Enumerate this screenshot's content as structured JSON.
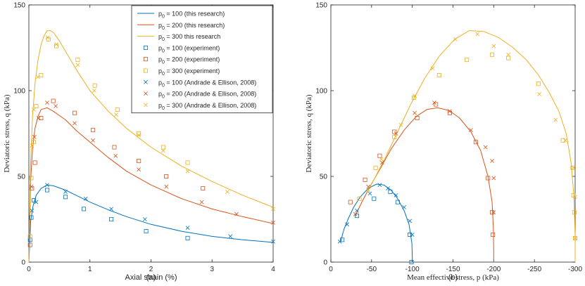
{
  "chart_data": [
    {
      "type": "line",
      "panel_label": "(a)",
      "xlabel": "Axial strain (%)",
      "ylabel": "Deviatoric stress, q (kPa)",
      "xlim": [
        0,
        4
      ],
      "ylim": [
        0,
        150
      ],
      "xticks": [
        0,
        1,
        2,
        3,
        4
      ],
      "yticks": [
        0,
        50,
        100,
        150
      ],
      "xtick_labels": [
        "0",
        "1",
        "2",
        "3",
        "4"
      ],
      "ytick_labels": [
        "0",
        "50",
        "100",
        "150"
      ],
      "grid": false,
      "legend_position": "top-right",
      "series": [
        {
          "name": "p0 = 100 (this research)",
          "kind": "line",
          "color": "#0072BD",
          "x": [
            0,
            0.03,
            0.07,
            0.12,
            0.2,
            0.3,
            0.4,
            0.6,
            0.8,
            1.0,
            1.3,
            1.6,
            2.0,
            2.5,
            3.0,
            3.5,
            4.0
          ],
          "y": [
            0,
            24,
            33,
            39,
            43,
            45,
            44.5,
            42,
            38.5,
            35,
            30.5,
            26.5,
            22,
            18,
            15,
            13,
            11.5
          ]
        },
        {
          "name": "p0 = 200 (this research)",
          "kind": "line",
          "color": "#D95319",
          "x": [
            0,
            0.03,
            0.06,
            0.1,
            0.15,
            0.2,
            0.3,
            0.4,
            0.6,
            0.8,
            1.0,
            1.3,
            1.6,
            2.0,
            2.5,
            3.0,
            3.5,
            4.0
          ],
          "y": [
            0,
            48,
            66,
            78,
            85,
            89,
            90,
            88,
            83,
            76,
            70,
            61,
            53,
            45,
            37,
            31,
            26.5,
            22.5
          ]
        },
        {
          "name": "p0 = 300 this research",
          "kind": "line",
          "color": "#EDB120",
          "x": [
            0,
            0.03,
            0.06,
            0.1,
            0.15,
            0.2,
            0.25,
            0.3,
            0.35,
            0.4,
            0.5,
            0.6,
            0.8,
            1.0,
            1.3,
            1.6,
            2.0,
            2.5,
            3.0,
            3.5,
            4.0
          ],
          "y": [
            0,
            60,
            85,
            104,
            118,
            127,
            132,
            135,
            135,
            134,
            129,
            123,
            111,
            100,
            88,
            78,
            67,
            56,
            47,
            39,
            32
          ]
        },
        {
          "name": "p0 = 100 (experiment)",
          "kind": "square",
          "color": "#0072BD",
          "x": [
            0.02,
            0.04,
            0.08,
            0.3,
            0.6,
            0.9,
            1.35,
            1.92,
            2.6
          ],
          "y": [
            13,
            26,
            36,
            42,
            38,
            31,
            25,
            18,
            14
          ]
        },
        {
          "name": "p0 = 200 (experiment)",
          "kind": "square",
          "color": "#D95319",
          "x": [
            0.02,
            0.05,
            0.1,
            0.2,
            0.4,
            0.75,
            1.05,
            1.4,
            1.8,
            2.25,
            2.85
          ],
          "y": [
            10,
            43,
            58,
            84,
            94,
            87,
            77,
            67,
            59,
            50,
            43
          ]
        },
        {
          "name": "p0 = 300 (experiment)",
          "kind": "square",
          "color": "#EDB120",
          "x": [
            0.02,
            0.04,
            0.08,
            0.12,
            0.2,
            0.32,
            0.45,
            0.8,
            1.08,
            1.45,
            1.8,
            2.2,
            2.6
          ],
          "y": [
            15,
            49,
            70,
            91,
            109,
            130,
            126,
            118,
            103,
            89,
            75,
            67,
            58
          ]
        },
        {
          "name": "p0 = 100 (Andrade & Ellison, 2008)",
          "kind": "cross",
          "color": "#0072BD",
          "x": [
            0.05,
            0.12,
            0.3,
            0.6,
            0.93,
            1.35,
            1.9,
            2.6,
            3.3,
            4.0
          ],
          "y": [
            30,
            35,
            45,
            41,
            37,
            31,
            25,
            20,
            15,
            12
          ]
        },
        {
          "name": "p0 = 200 (Andrade & Ellison, 2008)",
          "kind": "cross",
          "color": "#D95319",
          "x": [
            0.04,
            0.09,
            0.16,
            0.3,
            0.44,
            0.75,
            1.05,
            1.42,
            1.8,
            2.25,
            2.83,
            3.4,
            4.0
          ],
          "y": [
            44,
            73,
            84,
            93,
            91,
            81,
            71,
            62,
            54,
            44,
            35,
            28,
            23
          ]
        },
        {
          "name": "p0 = 300 (Andrade & Ellison, 2008)",
          "kind": "cross",
          "color": "#EDB120",
          "x": [
            0.05,
            0.08,
            0.15,
            0.31,
            0.45,
            0.8,
            1.07,
            1.43,
            1.8,
            2.2,
            2.6,
            3.25,
            4.0
          ],
          "y": [
            68,
            89,
            108,
            131,
            127,
            115,
            100,
            86,
            74,
            65,
            53,
            41,
            31
          ]
        }
      ]
    },
    {
      "type": "line",
      "panel_label": "(b)",
      "xlabel": "Mean effective stress, p (kPa)",
      "ylabel": "Deviatoric stress, q (kPa)",
      "xlim": [
        0,
        -300
      ],
      "ylim": [
        0,
        150
      ],
      "xticks": [
        0,
        -50,
        -100,
        -150,
        -200,
        -250,
        -300
      ],
      "yticks": [
        0,
        50,
        100,
        150
      ],
      "xtick_labels": [
        "0",
        "-50",
        "-100",
        "-150",
        "-200",
        "-250",
        "-300"
      ],
      "ytick_labels": [
        "0",
        "50",
        "100",
        "150"
      ],
      "grid": false,
      "series": [
        {
          "name": "p0 = 100 (this research)",
          "kind": "line",
          "color": "#0072BD",
          "x": [
            -12,
            -16,
            -22,
            -28,
            -36,
            -46,
            -56,
            -65,
            -74,
            -82,
            -90,
            -96,
            -99.5,
            -100,
            -100
          ],
          "y": [
            12,
            19,
            26,
            32,
            38,
            43,
            45.5,
            45,
            42,
            37,
            30,
            22,
            11,
            3,
            0
          ]
        },
        {
          "name": "p0 = 200 (this research)",
          "kind": "line",
          "color": "#D95319",
          "x": [
            -30,
            -38,
            -48,
            -60,
            -74,
            -90,
            -105,
            -118,
            -131,
            -145,
            -158,
            -172,
            -184,
            -193,
            -198,
            -199.5,
            -200,
            -200
          ],
          "y": [
            27,
            35,
            44,
            54,
            66,
            77,
            85,
            89,
            90,
            88.5,
            84,
            76,
            65,
            50,
            35,
            20,
            6,
            0
          ]
        },
        {
          "name": "p0 = 300 this research",
          "kind": "line",
          "color": "#EDB120",
          "x": [
            -45,
            -55,
            -68,
            -82,
            -98,
            -115,
            -133,
            -152,
            -170,
            -188,
            -206,
            -224,
            -240,
            -255,
            -268,
            -280,
            -289,
            -295,
            -298.5,
            -300,
            -300
          ],
          "y": [
            41,
            50,
            62,
            76,
            92,
            107,
            120,
            130,
            135,
            134.5,
            131,
            125,
            118,
            109,
            99,
            88,
            75,
            58,
            38,
            15,
            0
          ]
        },
        {
          "name": "p0 = 100 (experiment)",
          "kind": "square",
          "color": "#0072BD",
          "x": [
            -14,
            -32,
            -53,
            -73,
            -82,
            -97,
            -99
          ],
          "y": [
            13,
            27,
            37,
            41,
            35,
            16,
            0
          ]
        },
        {
          "name": "p0 = 200 (experiment)",
          "kind": "square",
          "color": "#D95319",
          "x": [
            -24,
            -42,
            -60,
            -78,
            -106,
            -129,
            -146,
            -178,
            -193,
            -198,
            -199
          ],
          "y": [
            35,
            48,
            62,
            76,
            84,
            92,
            87,
            70,
            49,
            29,
            16
          ]
        },
        {
          "name": "p0 = 300 (experiment)",
          "kind": "square",
          "color": "#EDB120",
          "x": [
            -35,
            -55,
            -78,
            -102,
            -133,
            -167,
            -198,
            -218,
            -255,
            -285,
            -297,
            -298,
            -299,
            -300
          ],
          "y": [
            37,
            55,
            73,
            96,
            109,
            118,
            121,
            119,
            104,
            71,
            55,
            39,
            29,
            14
          ]
        },
        {
          "name": "p0 = 100 (Andrade & Ellison, 2008)",
          "kind": "cross",
          "color": "#0072BD",
          "x": [
            -11,
            -20,
            -32,
            -48,
            -60,
            -70,
            -80,
            -90,
            -97,
            -100
          ],
          "y": [
            12,
            22,
            30,
            40,
            45,
            43,
            39,
            32,
            24,
            16
          ]
        },
        {
          "name": "p0 = 200 (Andrade & Ellison, 2008)",
          "kind": "cross",
          "color": "#D95319",
          "x": [
            -30,
            -46,
            -63,
            -80,
            -103,
            -127,
            -146,
            -172,
            -190,
            -198,
            -200,
            -200
          ],
          "y": [
            28,
            44,
            58,
            75,
            87,
            93,
            88,
            77,
            67,
            59,
            49,
            29
          ]
        },
        {
          "name": "p0 = 300 (Andrade & Ellison, 2008)",
          "kind": "cross",
          "color": "#EDB120",
          "x": [
            -46,
            -62,
            -86,
            -103,
            -125,
            -153,
            -180,
            -200,
            -218,
            -256,
            -276,
            -288,
            -298,
            -300,
            -300
          ],
          "y": [
            42,
            60,
            80,
            97,
            113,
            130,
            133,
            126,
            121,
            98,
            83,
            71,
            55,
            38,
            14
          ]
        }
      ]
    }
  ],
  "legend": {
    "entries": [
      {
        "base": "p",
        "sub": "0",
        "rest": " = 100 (this research)"
      },
      {
        "base": "p",
        "sub": "0",
        "rest": " = 200 (this research)"
      },
      {
        "base": "p",
        "sub": "0",
        "rest": " = 300 this research"
      },
      {
        "base": "p",
        "sub": "0",
        "rest": " = 100 (experiment)"
      },
      {
        "base": "p",
        "sub": "0",
        "rest": " = 200 (experiment)"
      },
      {
        "base": "p",
        "sub": "0",
        "rest": " = 300 (experiment)"
      },
      {
        "base": "p",
        "sub": "0",
        "rest": " = 100 (Andrade & Ellison, 2008)"
      },
      {
        "base": "p",
        "sub": "0",
        "rest": " = 200 (Andrade & Ellison, 2008)"
      },
      {
        "base": "p",
        "sub": "0",
        "rest": " = 300 (Andrade & Ellison, 2008)"
      }
    ]
  },
  "colors": {
    "blue": "#0072BD",
    "orange": "#D95319",
    "yellow": "#EDB120",
    "axis": "#262626"
  }
}
